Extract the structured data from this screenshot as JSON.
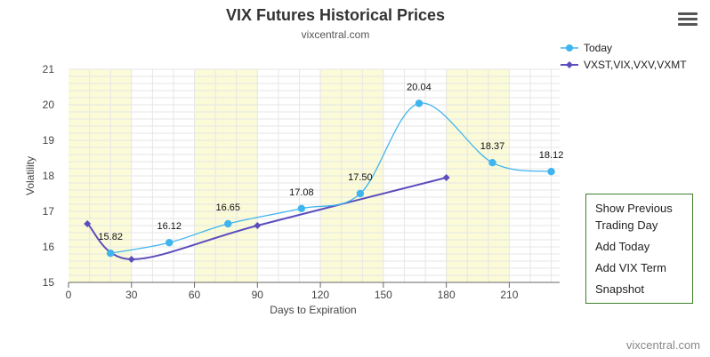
{
  "header": {
    "title": "VIX Futures Historical Prices",
    "subtitle": "vixcentral.com"
  },
  "menu": {
    "icon": "hamburger-menu-icon"
  },
  "credits": "vixcentral.com",
  "side_panel": {
    "items": [
      "Show Previous Trading Day",
      "Add Today",
      "Add VIX Term",
      "Snapshot"
    ]
  },
  "colors": {
    "today": "#40b4ee",
    "term": "#5b4dbd",
    "band": "#fbfbd8",
    "grid": "#e6e6e6",
    "panel_border": "#3f7f2a"
  },
  "chart_data": {
    "type": "line",
    "title": "VIX Futures Historical Prices",
    "subtitle": "vixcentral.com",
    "xlabel": "Days to Expiration",
    "ylabel": "Volatility",
    "xlim": [
      0,
      234
    ],
    "ylim": [
      15,
      21
    ],
    "xticks": [
      0,
      30,
      60,
      90,
      120,
      150,
      180,
      210
    ],
    "yticks": [
      15,
      16,
      17,
      18,
      19,
      20,
      21
    ],
    "shaded_x_bands": [
      [
        0,
        30
      ],
      [
        60,
        90
      ],
      [
        120,
        150
      ],
      [
        180,
        210
      ]
    ],
    "legend_position": "top-right",
    "series": [
      {
        "name": "Today",
        "color": "#40b4ee",
        "marker": "circle",
        "points": [
          [
            20,
            15.82
          ],
          [
            48,
            16.12
          ],
          [
            76,
            16.65
          ],
          [
            111,
            17.08
          ],
          [
            139,
            17.5
          ],
          [
            167,
            20.04
          ],
          [
            202,
            18.37
          ],
          [
            230,
            18.12
          ]
        ],
        "labels": [
          "15.82",
          "16.12",
          "16.65",
          "17.08",
          "17.50",
          "20.04",
          "18.37",
          "18.12"
        ]
      },
      {
        "name": "VXST,VIX,VXV,VXMT",
        "color": "#5b4dbd",
        "marker": "diamond",
        "points": [
          [
            9,
            16.65
          ],
          [
            30,
            15.65
          ],
          [
            90,
            16.6
          ],
          [
            180,
            17.95
          ]
        ]
      }
    ]
  }
}
